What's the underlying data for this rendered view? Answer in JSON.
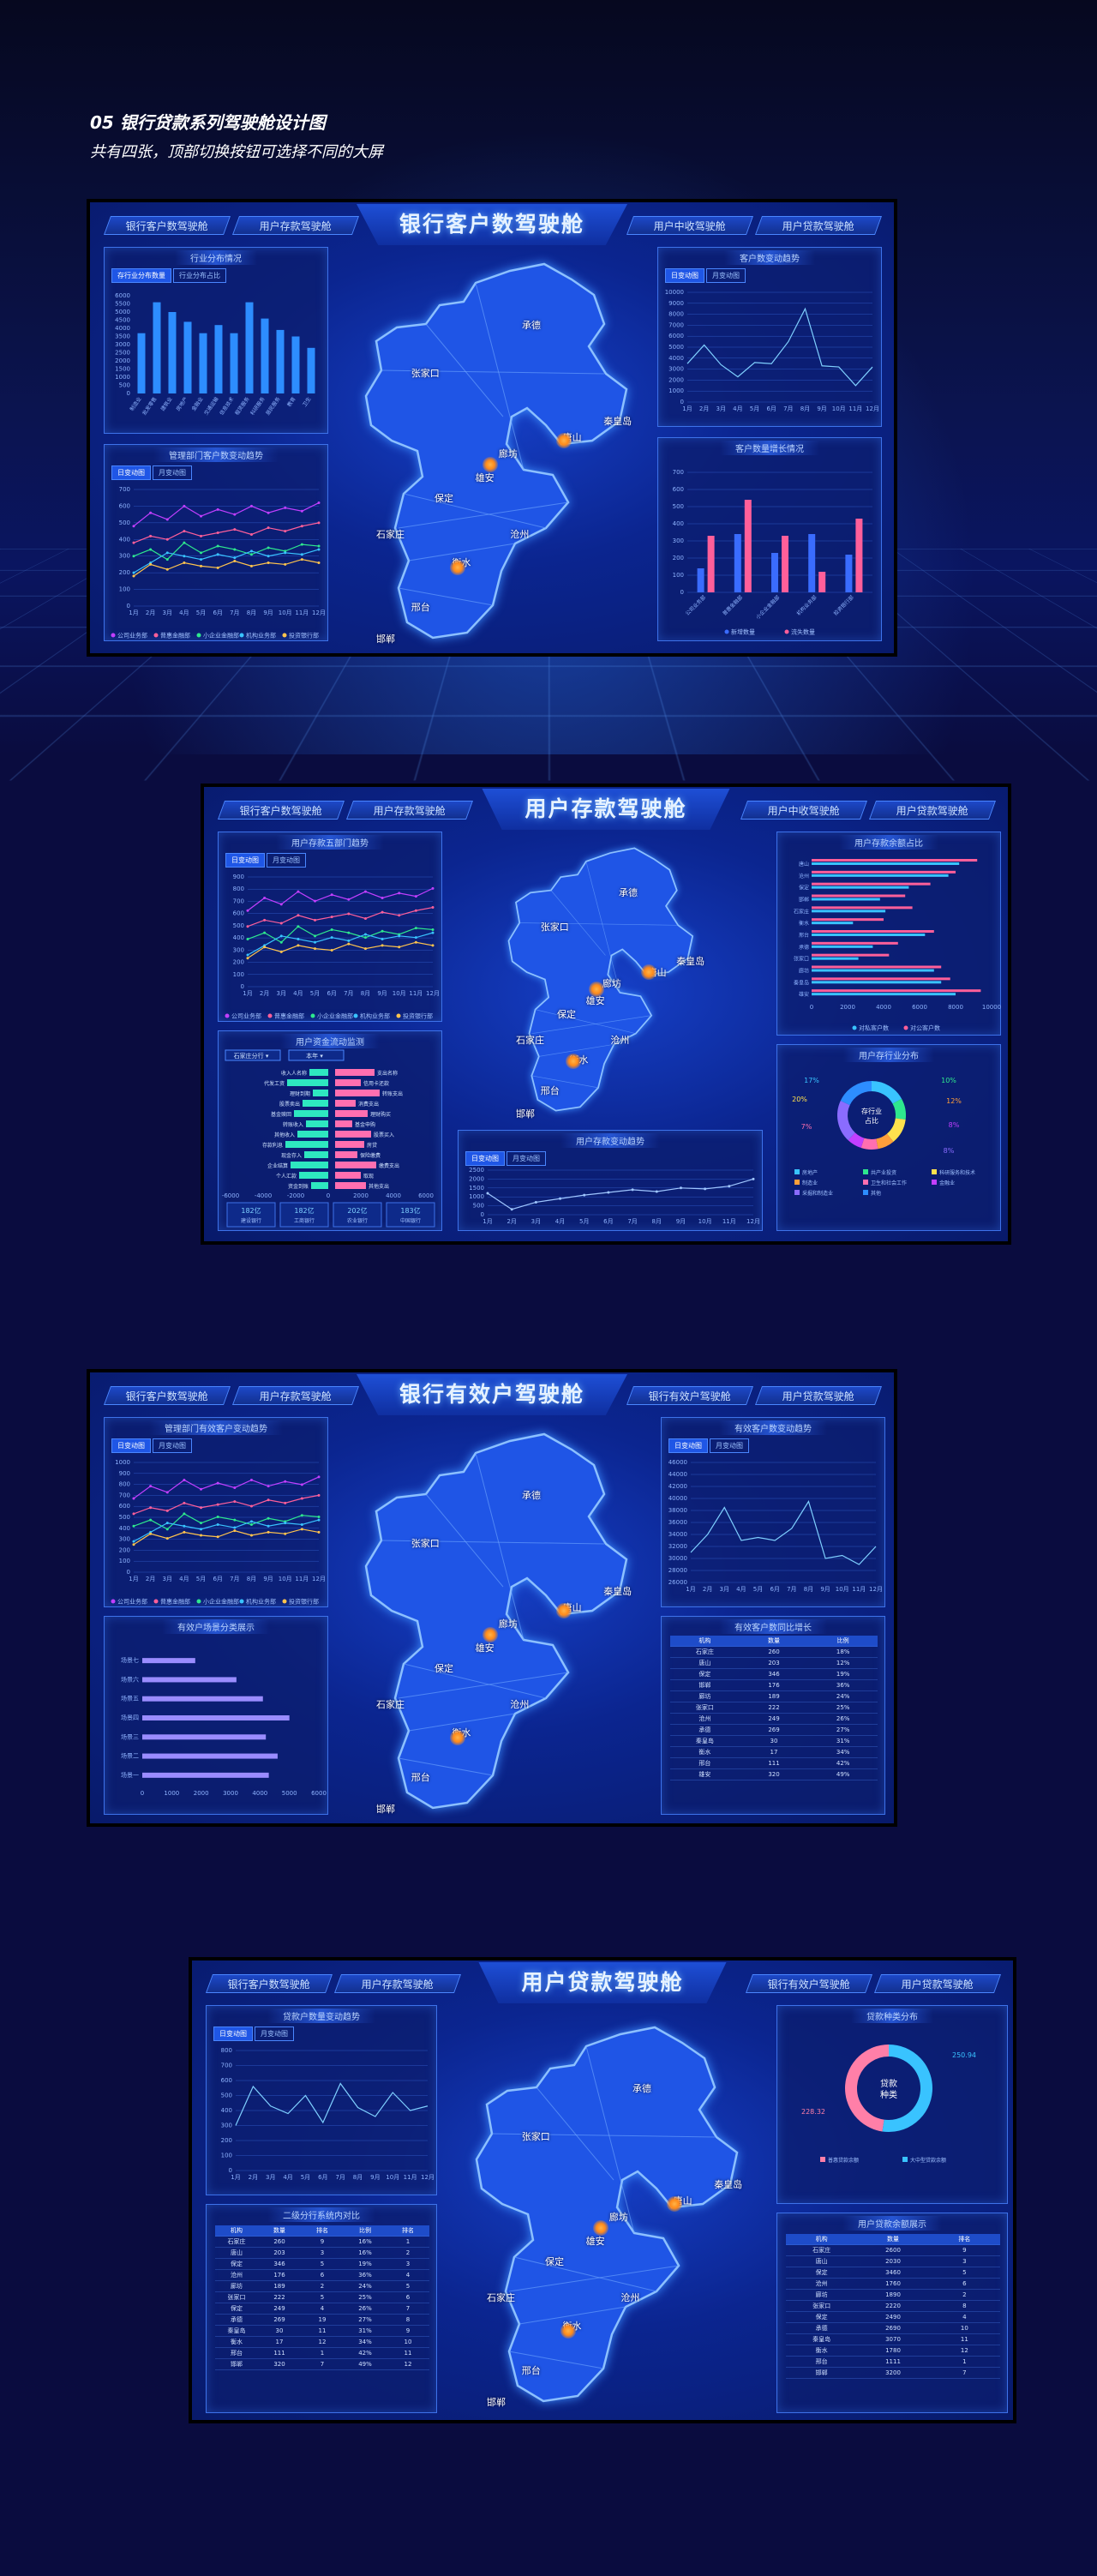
{
  "intro": {
    "title": "05 银行贷款系列驾驶舱设计图",
    "subtitle": "共有四张，顶部切换按钮可选择不同的大屏"
  },
  "nav": [
    "银行客户数驾驶舱",
    "用户存款驾驶舱",
    "用户中收驾驶舱",
    "用户贷款驾驶舱",
    "银行有效户驾驶舱"
  ],
  "cities": [
    "承德",
    "张家口",
    "秦皇岛",
    "唐山",
    "廊坊",
    "雄安",
    "保定",
    "沧州",
    "石家庄",
    "衡水",
    "邢台",
    "邯郸"
  ],
  "tabs": {
    "day": "日变动图",
    "month": "月变动图",
    "profile_on": "存行业分布数量",
    "profile_off": "行业分布占比"
  },
  "months": [
    "1月",
    "2月",
    "3月",
    "4月",
    "5月",
    "6月",
    "7月",
    "8月",
    "9月",
    "10月",
    "11月",
    "12月"
  ],
  "screen1": {
    "title": "银行客户数驾驶舱",
    "panels": {
      "industry": "行业分布情况",
      "customer_trend": "客户数变动趋势",
      "dept_trend": "管理部门客户数变动趋势",
      "growth": "客户数量增长情况"
    },
    "industry_yticks": [
      "6000",
      "5500",
      "5000",
      "4500",
      "4000",
      "3500",
      "3000",
      "2500",
      "2000",
      "1500",
      "1000",
      "500",
      "0"
    ],
    "industry_cats": [
      "制造业",
      "批发零售",
      "建筑业",
      "房地产",
      "金融业",
      "交通运输",
      "信息技术",
      "租赁服务",
      "科研服务",
      "居民服务",
      "教育",
      "卫生"
    ],
    "trend_yticks": [
      "10000",
      "9000",
      "8000",
      "7000",
      "6000",
      "5000",
      "4000",
      "3000",
      "2000",
      "1000",
      "0"
    ],
    "dept_yticks": [
      "700",
      "600",
      "500",
      "400",
      "300",
      "200",
      "100",
      "0"
    ],
    "dept_legend": [
      "公司业务部",
      "普惠金融部",
      "小企业金融部",
      "机构业务部",
      "投资银行部"
    ],
    "growth_yticks": [
      "700",
      "600",
      "500",
      "400",
      "300",
      "200",
      "100",
      "0"
    ],
    "growth_cats": [
      "公司业务部",
      "普惠金融部",
      "小企业金融部",
      "机构业务部",
      "投资银行部"
    ],
    "growth_legend": [
      "新增数量",
      "流失数量"
    ]
  },
  "screen2": {
    "title": "用户存款驾驶舱",
    "panels": {
      "dept": "用户存款五部门趋势",
      "share": "用户存款余额占比",
      "flow": "用户资金流动监测",
      "trend": "用户存款变动趋势",
      "industry": "用户存行业分布"
    },
    "share_legend": [
      "对私客户数",
      "对公客户数"
    ],
    "share_labels": [
      "唐山",
      "沧州",
      "保定",
      "邯郸",
      "石家庄",
      "衡水",
      "邢台",
      "承德",
      "张家口",
      "廊坊",
      "秦皇岛",
      "雄安"
    ],
    "share_xticks": [
      "0",
      "2000",
      "4000",
      "6000",
      "8000",
      "10000"
    ],
    "flow_selects": [
      "石家庄分行",
      "本年"
    ],
    "flow_left": [
      "收入人名称",
      "代发工资",
      "理财到期",
      "股票卖出",
      "基金赎回",
      "转账收入",
      "其他收入",
      "存款利息",
      "现金存入",
      "企业结算",
      "个人汇款",
      "资金到账"
    ],
    "flow_right": [
      "支出名称",
      "信用卡还款",
      "转账支出",
      "消费支出",
      "理财购买",
      "基金申购",
      "股票买入",
      "房贷",
      "保险缴费",
      "缴费支出",
      "取现",
      "其他支出"
    ],
    "flow_stats": [
      {
        "v": "182亿",
        "l": "建设银行"
      },
      {
        "v": "182亿",
        "l": "工商银行"
      },
      {
        "v": "202亿",
        "l": "农业银行"
      },
      {
        "v": "183亿",
        "l": "中国银行"
      }
    ],
    "donut_center": [
      "存行业",
      "占比"
    ],
    "donut_pct": [
      "17%",
      "10%",
      "20%",
      "12%",
      "7%",
      "8%",
      "8%"
    ],
    "donut_legend": [
      "房地产",
      "共产业投资",
      "科研服务和技术",
      "制造业",
      "卫生和社会工作",
      "金融业",
      "采掘和制造业",
      "其他"
    ],
    "dept_legend": [
      "公司业务部",
      "普惠金融部",
      "小企业金融部",
      "机构业务部",
      "投资银行部"
    ]
  },
  "screen3": {
    "title": "银行有效户驾驶舱",
    "panels": {
      "dept": "管理部门有效客户变动趋势",
      "trend": "有效客户数变动趋势",
      "segments": "有效户场景分类展示",
      "table": "有效客户数同比增长"
    },
    "trend_yticks": [
      "46000",
      "44000",
      "42000",
      "40000",
      "38000",
      "36000",
      "34000",
      "32000",
      "30000",
      "28000",
      "26000"
    ],
    "seg_labels": [
      "场景七",
      "场景六",
      "场景五",
      "场景四",
      "场景三",
      "场景二",
      "场景一"
    ],
    "seg_values": [
      1800,
      3200,
      4100,
      5000,
      4200,
      4600,
      4300
    ],
    "seg_xticks": [
      "0",
      "1000",
      "2000",
      "3000",
      "4000",
      "5000",
      "6000"
    ],
    "table_head": [
      "机构",
      "数量",
      "比例"
    ],
    "table_rows": [
      [
        "石家庄",
        "260",
        "18%"
      ],
      [
        "唐山",
        "203",
        "12%"
      ],
      [
        "保定",
        "346",
        "19%"
      ],
      [
        "邯郸",
        "176",
        "36%"
      ],
      [
        "廊坊",
        "189",
        "24%"
      ],
      [
        "张家口",
        "222",
        "25%"
      ],
      [
        "沧州",
        "249",
        "26%"
      ],
      [
        "承德",
        "269",
        "27%"
      ],
      [
        "秦皇岛",
        "30",
        "31%"
      ],
      [
        "衡水",
        "17",
        "34%"
      ],
      [
        "邢台",
        "111",
        "42%"
      ],
      [
        "雄安",
        "320",
        "49%"
      ]
    ]
  },
  "screen4": {
    "title": "用户贷款驾驶舱",
    "panels": {
      "trend": "贷款户数量变动趋势",
      "kind": "贷款种类分布",
      "compare": "二级分行系统内对比",
      "balance": "用户贷款余额展示"
    },
    "donut_center": [
      "贷款",
      "种类"
    ],
    "donut_values": [
      "250.94",
      "228.32"
    ],
    "donut_legend": [
      "普惠贷款余额",
      "大中型贷款余额"
    ],
    "compare_head": [
      "机构",
      "数量",
      "排名",
      "比例",
      "排名"
    ],
    "compare_rows": [
      [
        "石家庄",
        "260",
        "9",
        "16%",
        "1"
      ],
      [
        "唐山",
        "203",
        "3",
        "16%",
        "2"
      ],
      [
        "保定",
        "346",
        "5",
        "19%",
        "3"
      ],
      [
        "沧州",
        "176",
        "6",
        "36%",
        "4"
      ],
      [
        "廊坊",
        "189",
        "2",
        "24%",
        "5"
      ],
      [
        "张家口",
        "222",
        "5",
        "25%",
        "6"
      ],
      [
        "保定",
        "249",
        "4",
        "26%",
        "7"
      ],
      [
        "承德",
        "269",
        "19",
        "27%",
        "8"
      ],
      [
        "秦皇岛",
        "30",
        "11",
        "31%",
        "9"
      ],
      [
        "衡水",
        "17",
        "12",
        "34%",
        "10"
      ],
      [
        "邢台",
        "111",
        "1",
        "42%",
        "11"
      ],
      [
        "邯郸",
        "320",
        "7",
        "49%",
        "12"
      ]
    ],
    "balance_head": [
      "机构",
      "数量",
      "排名"
    ],
    "balance_rows": [
      [
        "石家庄",
        "2600",
        "9"
      ],
      [
        "唐山",
        "2030",
        "3"
      ],
      [
        "保定",
        "3460",
        "5"
      ],
      [
        "沧州",
        "1760",
        "6"
      ],
      [
        "廊坊",
        "1890",
        "2"
      ],
      [
        "张家口",
        "2220",
        "8"
      ],
      [
        "保定",
        "2490",
        "4"
      ],
      [
        "承德",
        "2690",
        "10"
      ],
      [
        "秦皇岛",
        "3070",
        "11"
      ],
      [
        "衡水",
        "1780",
        "12"
      ],
      [
        "邢台",
        "1111",
        "1"
      ],
      [
        "邯郸",
        "3200",
        "7"
      ]
    ]
  }
}
